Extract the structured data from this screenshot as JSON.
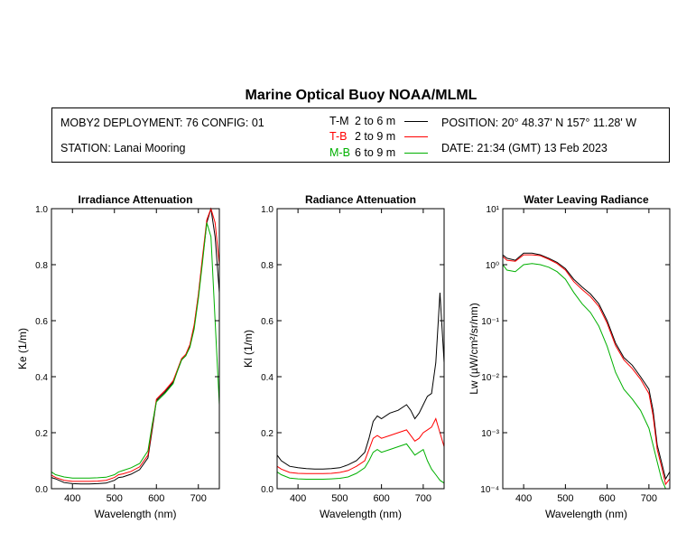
{
  "header": {
    "title": "Marine Optical Buoy NOAA/MLML",
    "deployment": "MOBY2 DEPLOYMENT: 76 CONFIG: 01",
    "station": "STATION: Lanai Mooring",
    "position": "POSITION: 20° 48.37' N   157° 11.28' W",
    "date": "DATE: 21:34 (GMT) 13 Feb 2023"
  },
  "legend": [
    {
      "label": "T-M",
      "range": "2 to 6  m",
      "color": "#000000"
    },
    {
      "label": "T-B",
      "range": "2 to 9  m",
      "color": "#ff0000"
    },
    {
      "label": "M-B",
      "range": "6 to 9  m",
      "color": "#00b000"
    }
  ],
  "chart_data": [
    {
      "type": "line",
      "title": "Irradiance Attenuation",
      "xlabel": "Wavelength (nm)",
      "ylabel": "Ke  (1/m)",
      "xlim": [
        350,
        750
      ],
      "ylim": [
        0,
        1.0
      ],
      "yscale": "linear",
      "xticks": [
        400,
        500,
        600,
        700
      ],
      "yticks": [
        "0.0",
        "0.2",
        "0.4",
        "0.6",
        "0.8",
        "1.0"
      ],
      "ytick_values": [
        0,
        0.2,
        0.4,
        0.6,
        0.8,
        1.0
      ],
      "x": [
        350,
        360,
        380,
        400,
        420,
        440,
        460,
        480,
        500,
        510,
        520,
        540,
        560,
        580,
        590,
        600,
        610,
        620,
        640,
        650,
        660,
        670,
        680,
        690,
        700,
        710,
        720,
        730,
        740,
        750
      ],
      "series": [
        {
          "name": "T-M",
          "color": "#000000",
          "values": [
            0.04,
            0.035,
            0.022,
            0.018,
            0.017,
            0.017,
            0.018,
            0.02,
            0.03,
            0.04,
            0.042,
            0.052,
            0.068,
            0.11,
            0.21,
            0.315,
            0.33,
            0.345,
            0.38,
            0.42,
            0.46,
            0.475,
            0.51,
            0.58,
            0.69,
            0.82,
            0.95,
            1.0,
            0.9,
            0.7
          ]
        },
        {
          "name": "T-B",
          "color": "#ff0000",
          "values": [
            0.048,
            0.04,
            0.03,
            0.026,
            0.026,
            0.026,
            0.027,
            0.03,
            0.04,
            0.05,
            0.053,
            0.062,
            0.078,
            0.12,
            0.22,
            0.32,
            0.335,
            0.35,
            0.385,
            0.425,
            0.465,
            0.48,
            0.515,
            0.585,
            0.695,
            0.83,
            0.96,
            1.0,
            0.95,
            0.8
          ]
        },
        {
          "name": "M-B",
          "color": "#00b000",
          "values": [
            0.06,
            0.05,
            0.042,
            0.038,
            0.038,
            0.038,
            0.039,
            0.041,
            0.05,
            0.06,
            0.065,
            0.075,
            0.09,
            0.135,
            0.23,
            0.31,
            0.325,
            0.34,
            0.375,
            0.42,
            0.46,
            0.475,
            0.505,
            0.57,
            0.68,
            0.81,
            0.95,
            0.9,
            0.6,
            0.3
          ]
        }
      ]
    },
    {
      "type": "line",
      "title": "Radiance Attenuation",
      "xlabel": "Wavelength (nm)",
      "ylabel": "Kl  (1/m)",
      "xlim": [
        350,
        750
      ],
      "ylim": [
        0,
        1.0
      ],
      "yscale": "linear",
      "xticks": [
        400,
        500,
        600,
        700
      ],
      "yticks": [
        "0.0",
        "0.2",
        "0.4",
        "0.6",
        "0.8",
        "1.0"
      ],
      "ytick_values": [
        0,
        0.2,
        0.4,
        0.6,
        0.8,
        1.0
      ],
      "x": [
        350,
        360,
        380,
        400,
        420,
        440,
        460,
        480,
        500,
        520,
        540,
        560,
        570,
        580,
        590,
        600,
        620,
        640,
        660,
        670,
        680,
        690,
        700,
        710,
        720,
        730,
        740,
        750
      ],
      "series": [
        {
          "name": "T-M",
          "color": "#000000",
          "values": [
            0.12,
            0.1,
            0.08,
            0.075,
            0.072,
            0.07,
            0.07,
            0.072,
            0.075,
            0.085,
            0.1,
            0.13,
            0.18,
            0.24,
            0.26,
            0.25,
            0.27,
            0.28,
            0.3,
            0.28,
            0.25,
            0.27,
            0.3,
            0.33,
            0.34,
            0.45,
            0.7,
            0.45
          ]
        },
        {
          "name": "T-B",
          "color": "#ff0000",
          "values": [
            0.08,
            0.07,
            0.058,
            0.055,
            0.054,
            0.054,
            0.054,
            0.055,
            0.058,
            0.065,
            0.08,
            0.1,
            0.14,
            0.18,
            0.19,
            0.18,
            0.19,
            0.2,
            0.21,
            0.19,
            0.17,
            0.18,
            0.2,
            0.21,
            0.22,
            0.25,
            0.2,
            0.15
          ]
        },
        {
          "name": "M-B",
          "color": "#00b000",
          "values": [
            0.06,
            0.05,
            0.038,
            0.035,
            0.034,
            0.034,
            0.034,
            0.035,
            0.037,
            0.042,
            0.055,
            0.075,
            0.1,
            0.13,
            0.14,
            0.13,
            0.14,
            0.15,
            0.16,
            0.14,
            0.12,
            0.13,
            0.14,
            0.1,
            0.07,
            0.05,
            0.03,
            0.02
          ]
        }
      ]
    },
    {
      "type": "line",
      "title": "Water Leaving Radiance",
      "xlabel": "Wavelength (nm)",
      "ylabel": "Lw  (µW/cm²/sr/nm)",
      "xlim": [
        350,
        750
      ],
      "ylim": [
        0.0001,
        10
      ],
      "yscale": "log",
      "xticks": [
        400,
        500,
        600,
        700
      ],
      "yticks": [
        "10¹",
        "10⁰",
        "10⁻¹",
        "10⁻²",
        "10⁻³",
        "10⁻⁴"
      ],
      "ytick_values": [
        10,
        1,
        0.1,
        0.01,
        0.001,
        0.0001
      ],
      "x": [
        350,
        360,
        380,
        400,
        420,
        440,
        460,
        480,
        500,
        520,
        540,
        560,
        580,
        600,
        620,
        640,
        660,
        680,
        700,
        710,
        720,
        730,
        740,
        750
      ],
      "series": [
        {
          "name": "T-M",
          "color": "#000000",
          "values": [
            1.5,
            1.3,
            1.2,
            1.6,
            1.6,
            1.5,
            1.3,
            1.1,
            0.85,
            0.55,
            0.4,
            0.3,
            0.2,
            0.1,
            0.04,
            0.022,
            0.016,
            0.01,
            0.006,
            0.0025,
            0.0006,
            0.0003,
            0.00015,
            0.0002
          ]
        },
        {
          "name": "T-B",
          "color": "#ff0000",
          "values": [
            1.4,
            1.2,
            1.15,
            1.5,
            1.5,
            1.45,
            1.25,
            1.05,
            0.8,
            0.5,
            0.36,
            0.27,
            0.18,
            0.09,
            0.036,
            0.02,
            0.014,
            0.009,
            0.005,
            0.002,
            0.0005,
            0.00025,
            0.00012,
            0.00015
          ]
        },
        {
          "name": "M-B",
          "color": "#00b000",
          "values": [
            1.0,
            0.8,
            0.75,
            1.0,
            1.05,
            1.0,
            0.9,
            0.75,
            0.55,
            0.32,
            0.2,
            0.14,
            0.08,
            0.035,
            0.012,
            0.006,
            0.004,
            0.0025,
            0.0012,
            0.0006,
            0.0003,
            0.00015,
            0.0001,
            0.0001
          ]
        }
      ]
    }
  ]
}
